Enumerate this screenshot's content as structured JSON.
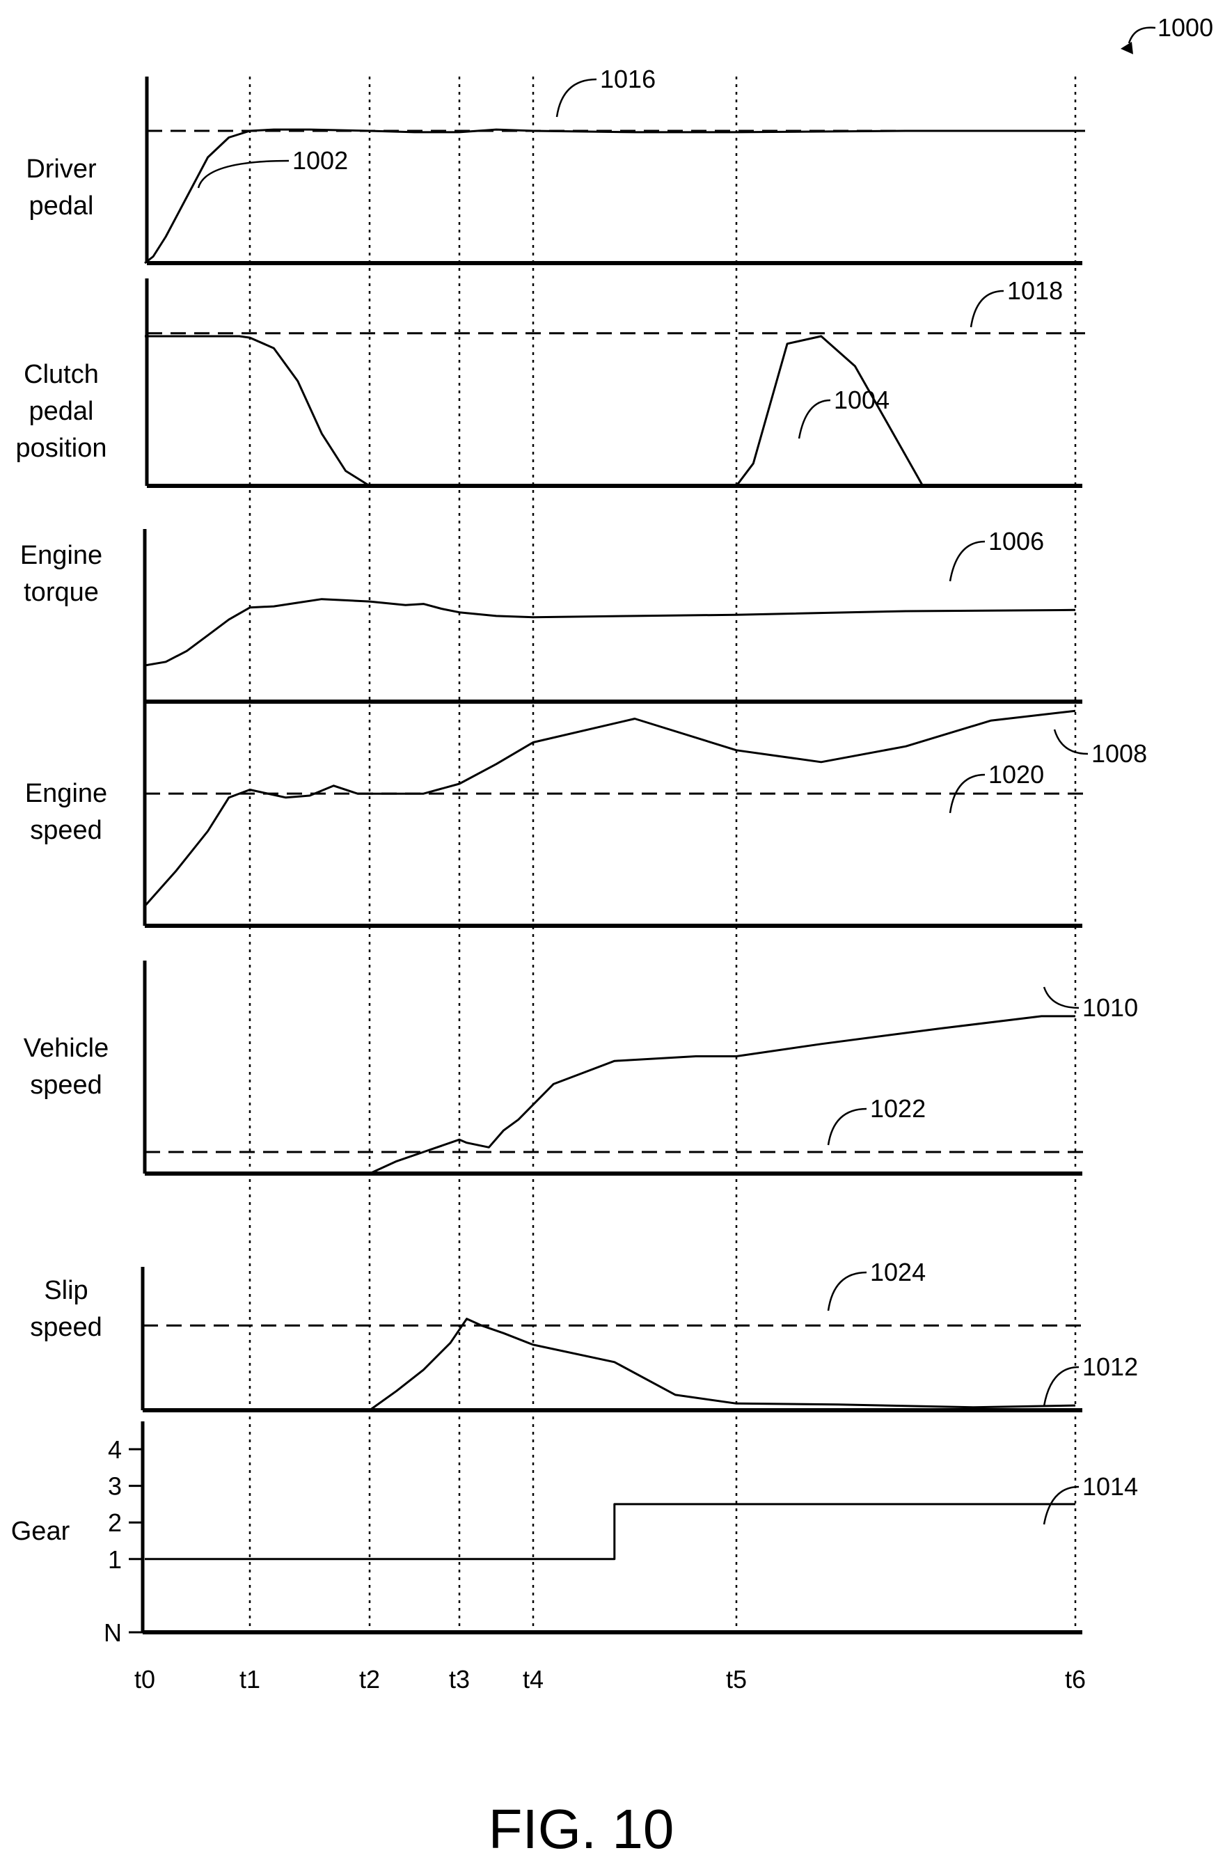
{
  "figure": {
    "ref_label": "1000",
    "caption": "FIG. 10"
  },
  "time_ticks": [
    "t0",
    "t1",
    "t2",
    "t3",
    "t4",
    "t5",
    "t6"
  ],
  "chart_data": [
    {
      "type": "line",
      "label_lines": [
        "Driver",
        "pedal"
      ],
      "x": [
        0.0,
        0.08,
        0.2,
        0.4,
        0.6,
        0.8,
        1.0,
        1.2,
        1.5,
        2.0,
        2.5,
        3.0,
        3.5,
        4.0,
        4.5,
        5.0,
        5.5,
        6.0
      ],
      "y": [
        0.0,
        0.05,
        0.2,
        0.5,
        0.8,
        0.95,
        1.0,
        1.01,
        1.01,
        1.0,
        0.99,
        0.99,
        1.01,
        1.0,
        0.99,
        0.99,
        1.0,
        1.0
      ],
      "ref_line_y": 1.0,
      "curve_ref": "1002",
      "threshold_ref": "1016",
      "ylim": [
        0,
        1.2
      ]
    },
    {
      "type": "line",
      "label_lines": [
        "Clutch",
        "pedal",
        "position"
      ],
      "x": [
        0.0,
        0.9,
        1.0,
        1.2,
        1.4,
        1.6,
        1.8,
        2.0,
        3.0,
        4.0,
        5.0,
        5.05,
        5.15,
        5.25,
        5.35,
        5.45,
        5.55,
        6.0
      ],
      "y": [
        1.0,
        1.0,
        0.99,
        0.92,
        0.7,
        0.35,
        0.1,
        0.0,
        0.0,
        0.0,
        0.0,
        0.15,
        0.95,
        1.0,
        0.8,
        0.4,
        0.0,
        0.0
      ],
      "ref_line_y": 1.02,
      "curve_ref": "1004",
      "threshold_ref": "1018",
      "ylim": [
        0,
        1.2
      ]
    },
    {
      "type": "line",
      "label_lines": [
        "Engine",
        "torque"
      ],
      "x": [
        0.0,
        0.2,
        0.4,
        0.6,
        0.8,
        1.0,
        1.2,
        1.4,
        1.6,
        1.8,
        2.0,
        2.4,
        2.6,
        2.8,
        3.0,
        3.5,
        4.0,
        4.5,
        5.0,
        5.5,
        6.0
      ],
      "y": [
        0.3,
        0.33,
        0.42,
        0.55,
        0.68,
        0.78,
        0.79,
        0.82,
        0.85,
        0.84,
        0.83,
        0.8,
        0.81,
        0.77,
        0.74,
        0.71,
        0.7,
        0.71,
        0.72,
        0.75,
        0.76
      ],
      "curve_ref": "1006",
      "ylim": [
        0,
        1.2
      ]
    },
    {
      "type": "line",
      "label_lines": [
        "Engine",
        "speed"
      ],
      "x": [
        0.0,
        0.3,
        0.6,
        0.8,
        1.0,
        1.3,
        1.5,
        1.7,
        1.9,
        2.0,
        2.3,
        2.6,
        3.0,
        3.5,
        4.0,
        4.5,
        5.0,
        5.25,
        5.5,
        5.75,
        6.0
      ],
      "y": [
        0.1,
        0.28,
        0.48,
        0.65,
        0.69,
        0.65,
        0.66,
        0.71,
        0.67,
        0.67,
        0.67,
        0.67,
        0.72,
        0.82,
        0.93,
        1.05,
        0.89,
        0.83,
        0.91,
        1.04,
        1.09
      ],
      "ref_line_y": 0.67,
      "curve_ref": "1008",
      "threshold_ref": "1020",
      "ylim": [
        0,
        1.2
      ]
    },
    {
      "type": "line",
      "label_lines": [
        "Vehicle",
        "speed"
      ],
      "x": [
        0.0,
        1.0,
        1.9,
        2.0,
        2.3,
        2.6,
        3.0,
        3.1,
        3.4,
        3.6,
        3.8,
        4.1,
        4.4,
        4.8,
        5.0,
        5.25,
        5.6,
        5.9,
        6.0
      ],
      "y": [
        0.0,
        0.0,
        0.0,
        0.0,
        0.08,
        0.14,
        0.22,
        0.2,
        0.17,
        0.28,
        0.35,
        0.58,
        0.73,
        0.76,
        0.76,
        0.84,
        0.94,
        1.02,
        1.02
      ],
      "ref_line_y": 0.14,
      "curve_ref": "1010",
      "threshold_ref": "1022",
      "ylim": [
        0,
        1.2
      ]
    },
    {
      "type": "line",
      "label_lines": [
        "Slip",
        "speed"
      ],
      "x": [
        0.0,
        1.9,
        2.0,
        2.3,
        2.6,
        2.9,
        3.1,
        3.3,
        3.6,
        4.0,
        4.4,
        4.7,
        5.0,
        5.3,
        5.7,
        6.0
      ],
      "y": [
        0.0,
        0.0,
        0.0,
        0.2,
        0.42,
        0.7,
        0.95,
        0.88,
        0.8,
        0.68,
        0.5,
        0.16,
        0.07,
        0.06,
        0.03,
        0.05
      ],
      "ref_line_y": 0.88,
      "curve_ref": "1012",
      "threshold_ref": "1024",
      "ylim": [
        0,
        1.2
      ]
    },
    {
      "type": "line",
      "label_lines": [
        "Gear"
      ],
      "x": [
        0.0,
        4.4,
        4.4,
        6.0
      ],
      "y": [
        1,
        1,
        2.5,
        2.5
      ],
      "yticks": [
        "N",
        "1",
        "2",
        "3",
        "4"
      ],
      "curve_ref": "1014",
      "ylim": [
        -1,
        4
      ]
    }
  ]
}
